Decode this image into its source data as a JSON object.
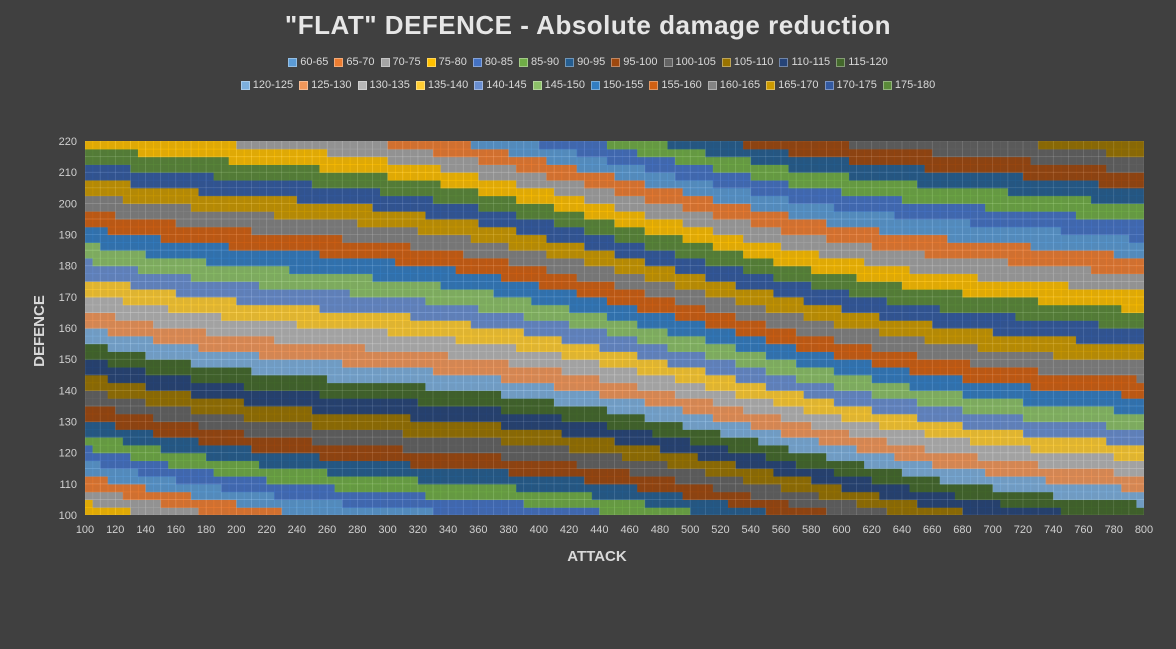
{
  "chart_data": {
    "type": "heatmap",
    "title": "\"FLAT\" DEFENCE - Absolute damage reduction",
    "xlabel": "ATTACK",
    "ylabel": "DEFENCE",
    "x_ticks": [
      100,
      120,
      140,
      160,
      180,
      200,
      220,
      240,
      260,
      280,
      300,
      320,
      340,
      360,
      380,
      400,
      420,
      440,
      460,
      480,
      500,
      520,
      540,
      560,
      580,
      600,
      620,
      640,
      660,
      680,
      700,
      720,
      740,
      760,
      780,
      800
    ],
    "y_ticks": [
      100,
      110,
      120,
      130,
      140,
      150,
      160,
      170,
      180,
      190,
      200,
      210,
      220
    ],
    "xlim": [
      100,
      800
    ],
    "ylim": [
      100,
      220
    ],
    "grid": true,
    "legend_position": "top",
    "bands": [
      {
        "name": "60-65",
        "color": "#5b9bd5"
      },
      {
        "name": "65-70",
        "color": "#ed7d31"
      },
      {
        "name": "70-75",
        "color": "#a5a5a5"
      },
      {
        "name": "75-80",
        "color": "#ffc000"
      },
      {
        "name": "80-85",
        "color": "#4472c4"
      },
      {
        "name": "85-90",
        "color": "#70ad47"
      },
      {
        "name": "90-95",
        "color": "#255e91"
      },
      {
        "name": "95-100",
        "color": "#9e480e"
      },
      {
        "name": "100-105",
        "color": "#636363"
      },
      {
        "name": "105-110",
        "color": "#997300"
      },
      {
        "name": "110-115",
        "color": "#264478"
      },
      {
        "name": "115-120",
        "color": "#43682b"
      },
      {
        "name": "120-125",
        "color": "#7cafdd"
      },
      {
        "name": "125-130",
        "color": "#f1975a"
      },
      {
        "name": "130-135",
        "color": "#b7b7b7"
      },
      {
        "name": "135-140",
        "color": "#ffcd33"
      },
      {
        "name": "140-145",
        "color": "#698ed0"
      },
      {
        "name": "145-150",
        "color": "#8cc168"
      },
      {
        "name": "150-155",
        "color": "#327dc2"
      },
      {
        "name": "155-160",
        "color": "#d26012"
      },
      {
        "name": "160-165",
        "color": "#848484"
      },
      {
        "name": "165-170",
        "color": "#cc9a00"
      },
      {
        "name": "170-175",
        "color": "#335aa1"
      },
      {
        "name": "175-180",
        "color": "#5a8a39"
      }
    ],
    "legend_rows": [
      [
        "60-65",
        "65-70",
        "70-75",
        "75-80",
        "80-85",
        "85-90",
        "90-95",
        "95-100",
        "100-105",
        "105-110",
        "110-115",
        "115-120"
      ],
      [
        "120-125",
        "125-130",
        "130-135",
        "135-140",
        "140-145",
        "145-150",
        "150-155",
        "155-160",
        "160-165",
        "165-170",
        "170-175",
        "175-180"
      ]
    ]
  }
}
